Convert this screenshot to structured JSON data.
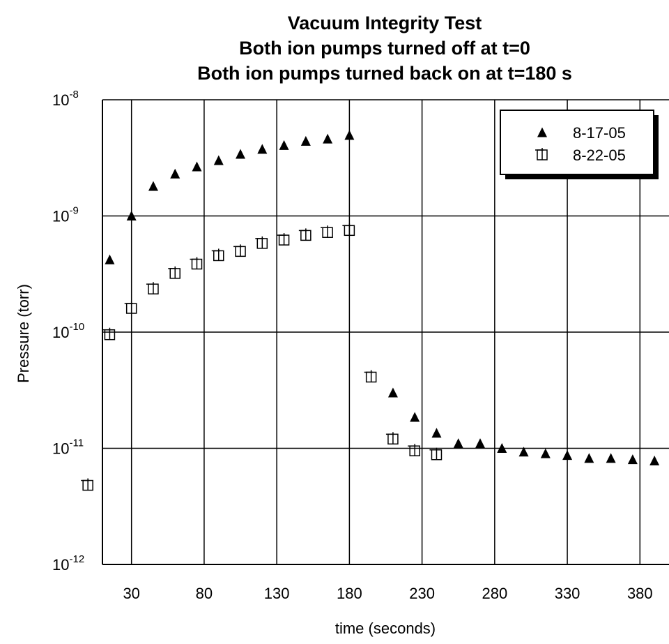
{
  "chart_data": {
    "type": "scatter",
    "title_lines": [
      "Vacuum Integrity Test",
      "Both ion pumps turned off at t=0",
      "Both ion pumps turned back on at t=180 s"
    ],
    "xlabel": "time (seconds)",
    "ylabel": "Pressure (torr)",
    "xlim": [
      10,
      400
    ],
    "ylim": [
      1e-12,
      1e-08
    ],
    "yscale": "log",
    "x_ticks": [
      30,
      80,
      130,
      180,
      230,
      280,
      330,
      380
    ],
    "y_ticks": [
      {
        "exp": -12,
        "base": "10",
        "sup": "-12"
      },
      {
        "exp": -11,
        "base": "10",
        "sup": "-11"
      },
      {
        "exp": -10,
        "base": "10",
        "sup": "-10"
      },
      {
        "exp": -9,
        "base": "10",
        "sup": "-9"
      },
      {
        "exp": -8,
        "base": "10",
        "sup": "-8"
      }
    ],
    "grid": true,
    "legend_position": "top-right",
    "series": [
      {
        "name": "8-17-05",
        "marker": "filled-triangle",
        "x": [
          15,
          30,
          45,
          60,
          75,
          90,
          105,
          120,
          135,
          150,
          165,
          180,
          210,
          225,
          240,
          255,
          270,
          285,
          300,
          315,
          330,
          345,
          360,
          375,
          390
        ],
        "y": [
          4.2e-10,
          1e-09,
          1.8e-09,
          2.3e-09,
          2.65e-09,
          3e-09,
          3.4e-09,
          3.75e-09,
          4.05e-09,
          4.4e-09,
          4.6e-09,
          4.95e-09,
          3e-11,
          1.85e-11,
          1.35e-11,
          1.1e-11,
          1.1e-11,
          1e-11,
          9.3e-12,
          9e-12,
          8.7e-12,
          8.2e-12,
          8.2e-12,
          8e-12,
          7.8e-12
        ]
      },
      {
        "name": "8-22-05",
        "marker": "open-square",
        "x": [
          0,
          15,
          30,
          45,
          60,
          75,
          90,
          105,
          120,
          135,
          150,
          165,
          180,
          195,
          210,
          225,
          240
        ],
        "y": [
          4.8e-12,
          9.5e-11,
          1.6e-10,
          2.35e-10,
          3.2e-10,
          3.85e-10,
          4.55e-10,
          4.95e-10,
          5.8e-10,
          6.2e-10,
          6.8e-10,
          7.2e-10,
          7.5e-10,
          4.1e-11,
          1.2e-11,
          9.5e-12,
          8.8e-12
        ]
      }
    ]
  }
}
